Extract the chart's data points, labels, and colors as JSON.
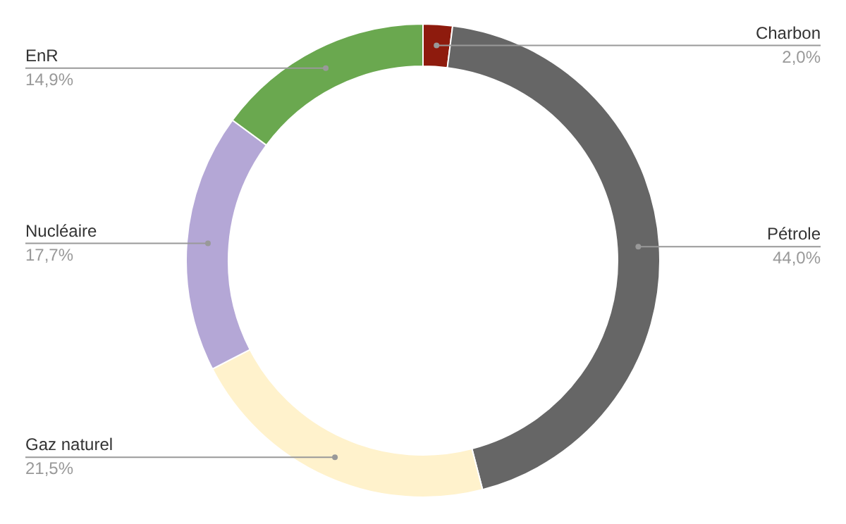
{
  "chart_data": {
    "type": "donut",
    "categories": [
      "Charbon",
      "Pétrole",
      "Gaz naturel",
      "Nucléaire",
      "EnR"
    ],
    "values": [
      2.0,
      44.0,
      21.5,
      17.7,
      14.9
    ],
    "value_labels": [
      "2,0%",
      "44,0%",
      "21,5%",
      "17,7%",
      "14,9%"
    ],
    "colors": [
      "#8e1b0d",
      "#666666",
      "#fff2cc",
      "#b4a7d6",
      "#6aa84f"
    ]
  }
}
